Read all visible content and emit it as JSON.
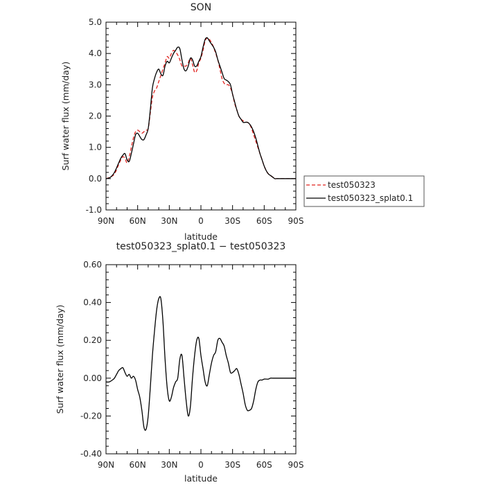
{
  "chart_data": [
    {
      "type": "line",
      "title": "SON",
      "xlabel": "latitude",
      "ylabel": "Surf water flux (mm/day)",
      "xlim": [
        90,
        -90
      ],
      "ylim": [
        -1.0,
        5.0
      ],
      "xticks": [
        90,
        60,
        30,
        0,
        -30,
        -60,
        -90
      ],
      "xtick_labels": [
        "90N",
        "60N",
        "30N",
        "0",
        "30S",
        "60S",
        "90S"
      ],
      "yticks": [
        -1.0,
        0.0,
        1.0,
        2.0,
        3.0,
        4.0,
        5.0
      ],
      "ytick_labels": [
        "-1.0",
        "0.0",
        "1.0",
        "2.0",
        "3.0",
        "4.0",
        "5.0"
      ],
      "grid": false,
      "legend": "right",
      "series": [
        {
          "name": "test050323",
          "color": "#e0201c",
          "style": "dashed",
          "x": [
            90,
            86,
            82,
            78,
            76,
            74,
            72,
            70,
            68,
            66,
            64,
            62,
            60,
            58,
            56,
            54,
            52,
            50,
            48,
            46,
            44,
            42,
            40,
            38,
            36,
            34,
            32,
            30,
            28,
            26,
            24,
            22,
            20,
            18,
            16,
            14,
            12,
            10,
            8,
            6,
            4,
            2,
            0,
            -2,
            -4,
            -6,
            -8,
            -10,
            -12,
            -14,
            -16,
            -18,
            -20,
            -22,
            -24,
            -26,
            -28,
            -30,
            -32,
            -34,
            -36,
            -38,
            -40,
            -42,
            -44,
            -46,
            -48,
            -50,
            -52,
            -54,
            -56,
            -58,
            -60,
            -62,
            -64,
            -66,
            -68,
            -70,
            -72,
            -74,
            -76,
            -78,
            -80,
            -82,
            -84,
            -86,
            -88,
            -90
          ],
          "y": [
            0.0,
            0.05,
            0.15,
            0.45,
            0.6,
            0.7,
            0.65,
            0.5,
            0.7,
            1.0,
            1.3,
            1.5,
            1.55,
            1.5,
            1.45,
            1.5,
            1.55,
            1.6,
            2.1,
            2.6,
            2.8,
            2.9,
            3.1,
            3.3,
            3.5,
            3.7,
            3.9,
            3.85,
            4.0,
            4.1,
            4.05,
            3.95,
            3.8,
            3.6,
            3.6,
            3.6,
            3.7,
            3.85,
            3.65,
            3.4,
            3.45,
            3.7,
            3.85,
            4.1,
            4.4,
            4.5,
            4.45,
            4.35,
            4.2,
            4.0,
            3.8,
            3.5,
            3.2,
            3.05,
            3.0,
            3.0,
            2.9,
            2.7,
            2.4,
            2.2,
            2.0,
            1.9,
            1.85,
            1.8,
            1.8,
            1.75,
            1.6,
            1.4,
            1.2,
            1.0,
            0.8,
            0.6,
            0.4,
            0.25,
            0.15,
            0.1,
            0.05,
            0.0,
            0.0,
            0.0,
            0.0,
            0.0,
            0.0,
            0.0,
            0.0,
            0.0,
            0.0,
            0.0
          ]
        },
        {
          "name": "test050323_splat0.1",
          "color": "#000000",
          "style": "solid",
          "x": [
            90,
            86,
            82,
            78,
            76,
            74,
            72,
            70,
            68,
            66,
            64,
            62,
            60,
            58,
            56,
            54,
            52,
            50,
            48,
            46,
            44,
            42,
            40,
            38,
            36,
            34,
            32,
            30,
            28,
            26,
            24,
            22,
            20,
            18,
            16,
            14,
            12,
            10,
            8,
            6,
            4,
            2,
            0,
            -2,
            -4,
            -6,
            -8,
            -10,
            -12,
            -14,
            -16,
            -18,
            -20,
            -22,
            -24,
            -26,
            -28,
            -30,
            -32,
            -34,
            -36,
            -38,
            -40,
            -42,
            -44,
            -46,
            -48,
            -50,
            -52,
            -54,
            -56,
            -58,
            -60,
            -62,
            -64,
            -66,
            -68,
            -70,
            -72,
            -74,
            -76,
            -78,
            -80,
            -82,
            -84,
            -86,
            -88,
            -90
          ],
          "y": [
            0.0,
            0.04,
            0.2,
            0.5,
            0.65,
            0.75,
            0.8,
            0.6,
            0.55,
            0.8,
            1.1,
            1.4,
            1.45,
            1.35,
            1.25,
            1.25,
            1.4,
            1.6,
            2.2,
            2.9,
            3.2,
            3.4,
            3.5,
            3.35,
            3.3,
            3.6,
            3.75,
            3.7,
            3.85,
            4.0,
            4.1,
            4.2,
            4.15,
            3.8,
            3.5,
            3.45,
            3.6,
            3.85,
            3.8,
            3.6,
            3.6,
            3.75,
            3.9,
            4.2,
            4.45,
            4.5,
            4.4,
            4.3,
            4.2,
            4.05,
            3.8,
            3.6,
            3.4,
            3.2,
            3.15,
            3.1,
            3.0,
            2.7,
            2.45,
            2.2,
            2.0,
            1.9,
            1.8,
            1.8,
            1.8,
            1.75,
            1.65,
            1.5,
            1.3,
            1.05,
            0.8,
            0.6,
            0.4,
            0.25,
            0.15,
            0.1,
            0.05,
            0.0,
            0.0,
            0.0,
            0.0,
            0.0,
            0.0,
            0.0,
            0.0,
            0.0,
            0.0,
            0.0
          ]
        }
      ]
    },
    {
      "type": "line",
      "title": "test050323_splat0.1 − test050323",
      "xlabel": "latitude",
      "ylabel": "Surf water flux (mm/day)",
      "xlim": [
        90,
        -90
      ],
      "ylim": [
        -0.4,
        0.6
      ],
      "xticks": [
        90,
        60,
        30,
        0,
        -30,
        -60,
        -90
      ],
      "xtick_labels": [
        "90N",
        "60N",
        "30N",
        "0",
        "30S",
        "60S",
        "90S"
      ],
      "yticks": [
        -0.4,
        -0.2,
        0.0,
        0.2,
        0.4,
        0.6
      ],
      "ytick_labels": [
        "-0.40",
        "-0.20",
        "0.00",
        "0.20",
        "0.40",
        "0.60"
      ],
      "grid": false,
      "series": [
        {
          "color": "#000000",
          "style": "solid",
          "x": [
            90,
            87,
            84,
            82,
            80,
            78,
            76,
            74,
            72,
            70,
            68,
            66,
            64,
            62,
            60,
            58,
            56,
            54,
            52,
            50,
            48,
            46,
            44,
            42,
            40,
            38,
            36,
            34,
            32,
            30,
            28,
            26,
            24,
            22,
            20,
            18,
            16,
            14,
            12,
            10,
            8,
            6,
            4,
            2,
            0,
            -2,
            -4,
            -6,
            -8,
            -10,
            -12,
            -14,
            -16,
            -18,
            -20,
            -22,
            -24,
            -26,
            -28,
            -30,
            -32,
            -34,
            -36,
            -38,
            -40,
            -42,
            -44,
            -46,
            -48,
            -50,
            -52,
            -54,
            -56,
            -58,
            -60,
            -62,
            -64,
            -66,
            -68,
            -70,
            -72,
            -74,
            -76,
            -78,
            -80,
            -82,
            -84,
            -86,
            -88,
            -90
          ],
          "y": [
            -0.02,
            -0.02,
            -0.01,
            0.0,
            0.02,
            0.04,
            0.05,
            0.055,
            0.03,
            0.01,
            0.02,
            0.0,
            0.01,
            -0.01,
            -0.06,
            -0.1,
            -0.17,
            -0.26,
            -0.27,
            -0.2,
            -0.05,
            0.12,
            0.25,
            0.36,
            0.42,
            0.42,
            0.3,
            0.1,
            -0.05,
            -0.12,
            -0.1,
            -0.05,
            -0.02,
            0.0,
            0.1,
            0.12,
            0.0,
            -0.12,
            -0.2,
            -0.15,
            0.0,
            0.12,
            0.2,
            0.21,
            0.12,
            0.05,
            -0.02,
            -0.04,
            0.02,
            0.08,
            0.12,
            0.14,
            0.2,
            0.21,
            0.19,
            0.17,
            0.12,
            0.08,
            0.03,
            0.03,
            0.04,
            0.05,
            0.02,
            -0.03,
            -0.08,
            -0.14,
            -0.17,
            -0.17,
            -0.16,
            -0.12,
            -0.06,
            -0.02,
            -0.01,
            -0.01,
            -0.005,
            -0.005,
            -0.005,
            0.0,
            0.0,
            0.0,
            0.0,
            0.0,
            0.0,
            0.0,
            0.0,
            0.0,
            0.0,
            0.0,
            0.0,
            0.0
          ]
        }
      ]
    }
  ]
}
